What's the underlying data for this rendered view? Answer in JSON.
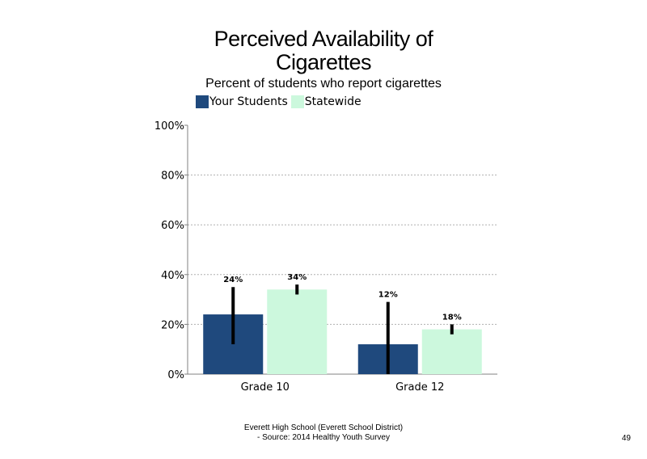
{
  "colors": {
    "your_students": "#1f497d",
    "statewide": "#ccf8dd",
    "error_bar": "#000000",
    "grid": "#b0b0b0"
  },
  "footer": {
    "line1": "Everett High School (Everett School District)",
    "line2": "- Source: 2014 Healthy Youth Survey"
  },
  "page_number": "49",
  "chart_data": {
    "type": "bar",
    "title_line1": "Perceived Availability of",
    "title_line2": "Cigarettes",
    "subtitle": "Percent of students who report cigarettes",
    "categories": [
      "Grade 10",
      "Grade 12"
    ],
    "series": [
      {
        "name": "Your Students",
        "values": [
          24,
          12
        ],
        "labels": [
          "24%",
          "12%"
        ],
        "error_low": [
          12,
          0
        ],
        "error_high": [
          35,
          29
        ]
      },
      {
        "name": "Statewide",
        "values": [
          34,
          18
        ],
        "labels": [
          "34%",
          "18%"
        ],
        "error_low": [
          32,
          16
        ],
        "error_high": [
          36,
          20
        ]
      }
    ],
    "yticks": [
      "0%",
      "20%",
      "40%",
      "60%",
      "80%",
      "100%"
    ],
    "ylim": [
      0,
      100
    ],
    "grid": true,
    "legend_position": "top"
  }
}
